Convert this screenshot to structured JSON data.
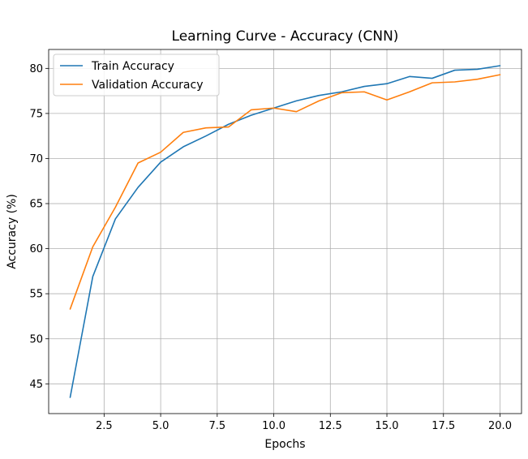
{
  "chart_data": {
    "type": "line",
    "title": "Learning Curve - Accuracy (CNN)",
    "xlabel": "Epochs",
    "ylabel": "Accuracy (%)",
    "xlim": [
      0.05,
      20.95
    ],
    "ylim": [
      41.7,
      82.1
    ],
    "xticks": [
      2.5,
      5.0,
      7.5,
      10.0,
      12.5,
      15.0,
      17.5,
      20.0
    ],
    "xtick_labels": [
      "2.5",
      "5.0",
      "7.5",
      "10.0",
      "12.5",
      "15.0",
      "17.5",
      "20.0"
    ],
    "yticks": [
      45,
      50,
      55,
      60,
      65,
      70,
      75,
      80
    ],
    "ytick_labels": [
      "45",
      "50",
      "55",
      "60",
      "65",
      "70",
      "75",
      "80"
    ],
    "grid": true,
    "legend_position": "top-left",
    "x": [
      1,
      2,
      3,
      4,
      5,
      6,
      7,
      8,
      9,
      10,
      11,
      12,
      13,
      14,
      15,
      16,
      17,
      18,
      19,
      20
    ],
    "series": [
      {
        "name": "Train Accuracy",
        "color": "#1f77b4",
        "values": [
          43.5,
          56.9,
          63.3,
          66.8,
          69.6,
          71.3,
          72.5,
          73.8,
          74.8,
          75.6,
          76.4,
          77.0,
          77.4,
          78.0,
          78.3,
          79.1,
          78.9,
          79.8,
          79.9,
          80.3
        ]
      },
      {
        "name": "Validation Accuracy",
        "color": "#ff7f0e",
        "values": [
          53.3,
          60.2,
          64.6,
          69.5,
          70.7,
          72.9,
          73.4,
          73.5,
          75.4,
          75.6,
          75.2,
          76.4,
          77.3,
          77.4,
          76.5,
          77.4,
          78.4,
          78.5,
          78.8,
          79.3
        ]
      }
    ]
  }
}
